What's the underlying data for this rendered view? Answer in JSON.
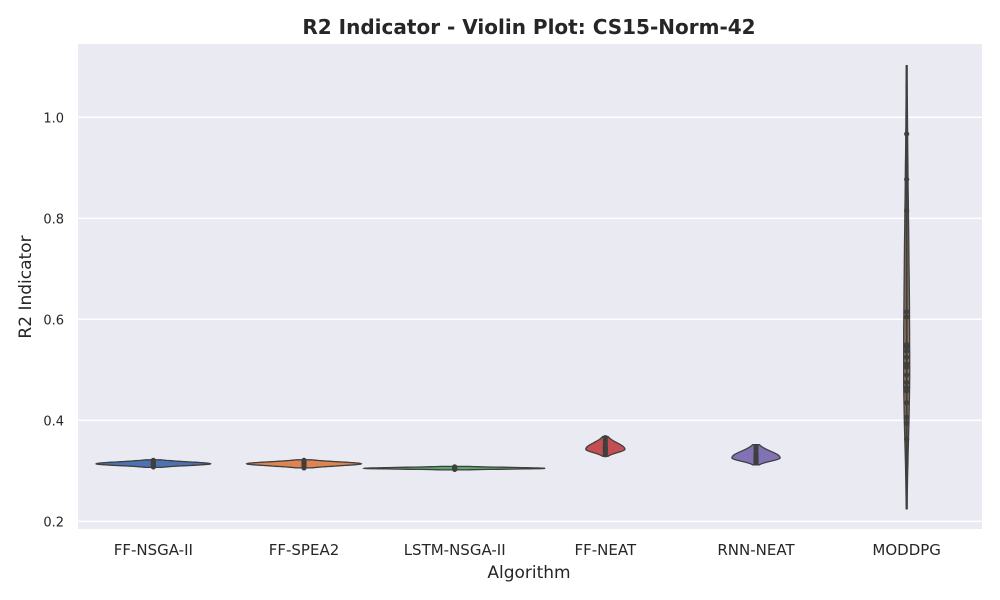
{
  "chart_data": {
    "type": "violin",
    "title": "R2 Indicator - Violin Plot: CS15-Norm-42",
    "xlabel": "Algorithm",
    "ylabel": "R2 Indicator",
    "ylim": [
      0.185,
      1.145
    ],
    "yticks": [
      0.2,
      0.4,
      0.6,
      0.8,
      1.0
    ],
    "ytick_labels": [
      "0.2",
      "0.4",
      "0.6",
      "0.8",
      "1.0"
    ],
    "grid": true,
    "background": "#eaeaf2",
    "gridColor": "#ffffff",
    "categories": [
      "FF-NSGA-II",
      "FF-SPEA2",
      "LSTM-NSGA-II",
      "FF-NEAT",
      "RNN-NEAT",
      "MODDPG"
    ],
    "series": [
      {
        "color": "#4c72b0",
        "min": 0.307,
        "max": 0.322,
        "center": 0.314,
        "halfwidth": 0.38,
        "points": [
          0.308,
          0.31,
          0.312,
          0.313,
          0.314,
          0.315,
          0.316,
          0.317,
          0.319,
          0.321
        ]
      },
      {
        "color": "#dd8452",
        "min": 0.306,
        "max": 0.322,
        "center": 0.314,
        "halfwidth": 0.38,
        "points": [
          0.306,
          0.309,
          0.311,
          0.313,
          0.314,
          0.315,
          0.316,
          0.317,
          0.319,
          0.321
        ]
      },
      {
        "color": "#55a868",
        "min": 0.302,
        "max": 0.309,
        "center": 0.305,
        "halfwidth": 0.6,
        "points": [
          0.303,
          0.304,
          0.305,
          0.305,
          0.306,
          0.306,
          0.307,
          0.308
        ]
      },
      {
        "color": "#c44e52",
        "min": 0.329,
        "max": 0.368,
        "center": 0.343,
        "halfwidth": 0.13,
        "points": [
          0.332,
          0.336,
          0.339,
          0.342,
          0.344,
          0.346,
          0.349,
          0.354,
          0.36,
          0.366
        ]
      },
      {
        "color": "#8172b3",
        "min": 0.312,
        "max": 0.352,
        "center": 0.326,
        "halfwidth": 0.16,
        "points": [
          0.316,
          0.319,
          0.322,
          0.325,
          0.327,
          0.329,
          0.332,
          0.337,
          0.343,
          0.348
        ]
      },
      {
        "color": "#937860",
        "min": 0.225,
        "max": 1.102,
        "center": 0.5,
        "halfwidth": 0.02,
        "points": [
          0.363,
          0.394,
          0.406,
          0.435,
          0.458,
          0.465,
          0.475,
          0.49,
          0.505,
          0.512,
          0.525,
          0.537,
          0.545,
          0.55,
          0.605,
          0.615,
          0.815,
          0.877,
          0.967
        ]
      }
    ]
  }
}
